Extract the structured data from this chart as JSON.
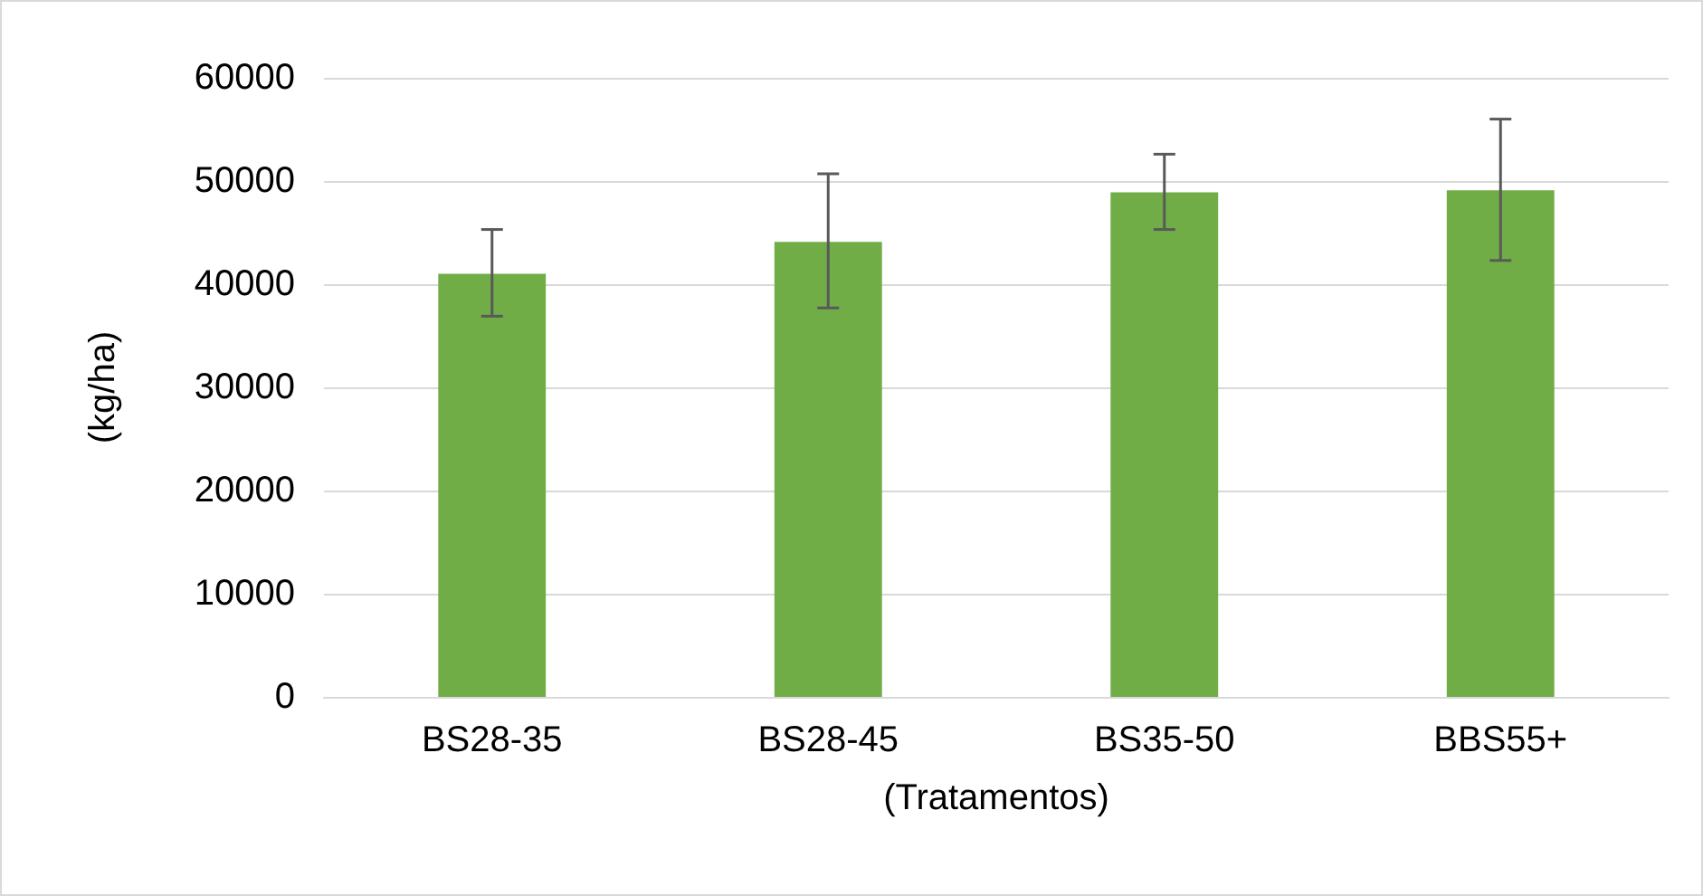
{
  "chart_data": {
    "type": "bar",
    "xlabel": "(Tratamentos)",
    "ylabel": "(kg/ha)",
    "categories": [
      "BS28-35",
      "BS28-45",
      "BS35-50",
      "BBS55+"
    ],
    "values": [
      41000,
      44100,
      48900,
      49100
    ],
    "color": "#70ad47",
    "errors": [
      [
        36900,
        45300
      ],
      [
        37700,
        50700
      ],
      [
        45300,
        52600
      ],
      [
        42300,
        56000
      ]
    ],
    "ylim": [
      0,
      60000
    ],
    "yticks": [
      0,
      10000,
      20000,
      30000,
      40000,
      50000,
      60000
    ],
    "grid": "y"
  }
}
